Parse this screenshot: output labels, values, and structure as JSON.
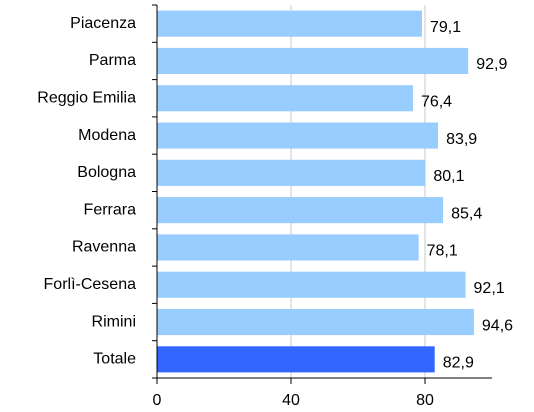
{
  "chart_data": {
    "type": "bar",
    "orientation": "horizontal",
    "categories": [
      "Piacenza",
      "Parma",
      "Reggio Emilia",
      "Modena",
      "Bologna",
      "Ferrara",
      "Ravenna",
      "Forlì-Cesena",
      "Rimini",
      "Totale"
    ],
    "values": [
      79.1,
      92.9,
      76.4,
      83.9,
      80.1,
      85.4,
      78.1,
      92.1,
      94.6,
      82.9
    ],
    "value_labels": [
      "79,1",
      "92,9",
      "76,4",
      "83,9",
      "80,1",
      "85,4",
      "78,1",
      "92,1",
      "94,6",
      "82,9"
    ],
    "colors": [
      "#99ccff",
      "#99ccff",
      "#99ccff",
      "#99ccff",
      "#99ccff",
      "#99ccff",
      "#99ccff",
      "#99ccff",
      "#99ccff",
      "#3366ff"
    ],
    "xlim": [
      0,
      100
    ],
    "xticks": [
      0,
      40,
      80
    ],
    "grid": true
  }
}
